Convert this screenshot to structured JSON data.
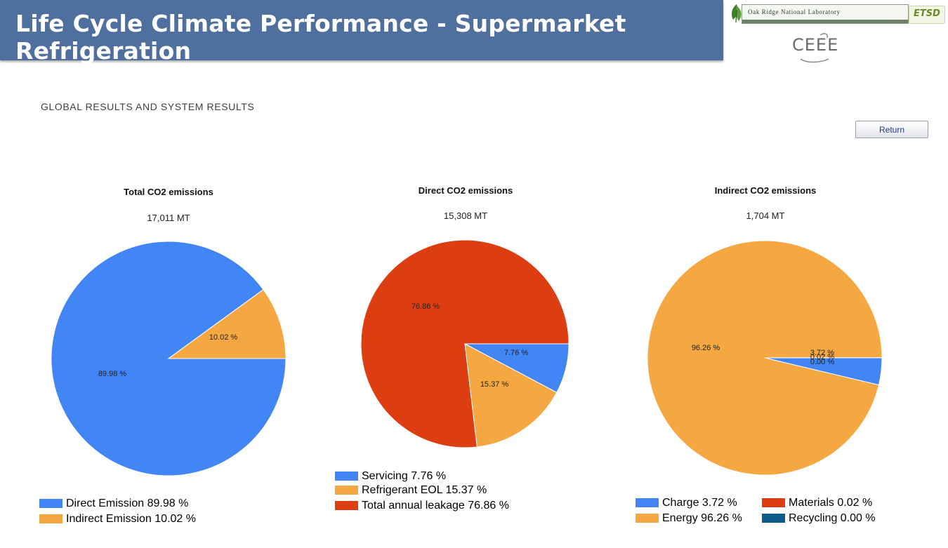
{
  "header": {
    "title": "Life Cycle Climate Performance - Supermarket Refrigeration",
    "logos": {
      "ornl": "Oak Ridge National Laboratory",
      "etsd": "ETSD",
      "ceee": "CEEE"
    }
  },
  "section_heading": "GLOBAL RESULTS AND SYSTEM RESULTS",
  "return_button": "Return",
  "colors": {
    "title_bar": "#4f6f9e",
    "blue": "#4285f4",
    "orange": "#f5a842",
    "red": "#dc3e12",
    "dark_blue": "#0f5c8c"
  },
  "chart_data": [
    {
      "type": "pie",
      "title": "Total CO2 emissions",
      "subtitle": "17,011 MT",
      "slices": [
        {
          "label": "Direct Emission",
          "value": 89.98,
          "slice_label": "89.98 %",
          "legend": "Direct Emission 89.98 %",
          "color": "#4285f4"
        },
        {
          "label": "Indirect Emission",
          "value": 10.02,
          "slice_label": "10.02 %",
          "legend": "Indirect Emission 10.02 %",
          "color": "#f5a842"
        }
      ]
    },
    {
      "type": "pie",
      "title": "Direct CO2 emissions",
      "subtitle": "15,308 MT",
      "slices": [
        {
          "label": "Servicing",
          "value": 7.76,
          "slice_label": "7.76 %",
          "legend": "Servicing 7.76 %",
          "color": "#4285f4"
        },
        {
          "label": "Refrigerant EOL",
          "value": 15.37,
          "slice_label": "15.37 %",
          "legend": "Refrigerant EOL 15.37 %",
          "color": "#f5a842"
        },
        {
          "label": "Total annual leakage",
          "value": 76.86,
          "slice_label": "76.86 %",
          "legend": "Total annual leakage 76.86 %",
          "color": "#dc3e12"
        }
      ]
    },
    {
      "type": "pie",
      "title": "Indirect CO2 emissions",
      "subtitle": "1,704 MT",
      "slices": [
        {
          "label": "Charge",
          "value": 3.72,
          "slice_label": "3.72 %",
          "legend": "Charge 3.72 %",
          "color": "#4285f4"
        },
        {
          "label": "Energy",
          "value": 96.26,
          "slice_label": "96.26 %",
          "legend": "Energy 96.26 %",
          "color": "#f5a842"
        },
        {
          "label": "Materials",
          "value": 0.02,
          "slice_label": "0.02 %",
          "legend": "Materials 0.02 %",
          "color": "#dc3e12"
        },
        {
          "label": "Recycling",
          "value": 0.0,
          "slice_label": "0.00 %",
          "legend": "Recycling 0.00 %",
          "color": "#0f5c8c"
        }
      ]
    }
  ]
}
